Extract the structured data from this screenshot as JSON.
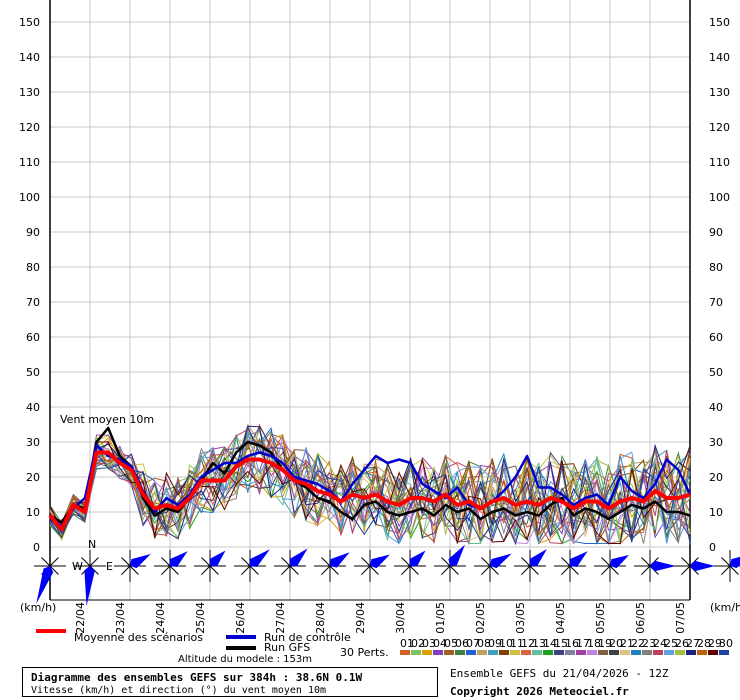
{
  "chart_data": {
    "type": "line",
    "title": "Vent moyen 10m",
    "ylim": [
      0,
      150
    ],
    "yticks": [
      0,
      10,
      20,
      30,
      40,
      50,
      60,
      70,
      80,
      90,
      100,
      110,
      120,
      130,
      140,
      150
    ],
    "x_labels": [
      "22/04",
      "23/04",
      "24/04",
      "25/04",
      "26/04",
      "27/04",
      "28/04",
      "29/04",
      "30/04",
      "01/05",
      "02/05",
      "03/05",
      "04/05",
      "05/05",
      "06/05",
      "07/05"
    ],
    "unit_left": "(km/h)",
    "unit_right": "(km/h)",
    "mean_series": {
      "name": "Moyenne des scénarios",
      "color": "#ff0000",
      "values": [
        9,
        5,
        12,
        10,
        27,
        27,
        24,
        22,
        15,
        11,
        12,
        11,
        14,
        19,
        19,
        19,
        23,
        25,
        25,
        24,
        22,
        19,
        18,
        16,
        15,
        13,
        15,
        14,
        15,
        13,
        12,
        14,
        14,
        13,
        15,
        12,
        13,
        11,
        13,
        14,
        12,
        13,
        12,
        14,
        13,
        11,
        13,
        13,
        11,
        13,
        14,
        13,
        16,
        14,
        14,
        15
      ]
    },
    "control_series": {
      "name": "Run de contrôle",
      "color": "#0000cc",
      "values": [
        8,
        6,
        11,
        14,
        29,
        26,
        25,
        23,
        16,
        10,
        14,
        12,
        15,
        20,
        22,
        24,
        24,
        26,
        27,
        26,
        24,
        20,
        19,
        18,
        16,
        13,
        18,
        22,
        26,
        24,
        25,
        24,
        18,
        16,
        14,
        17,
        12,
        11,
        13,
        16,
        20,
        26,
        17,
        17,
        15,
        12,
        14,
        15,
        12,
        20,
        16,
        14,
        18,
        25,
        22,
        15
      ]
    },
    "gfs_series": {
      "name": "Run GFS",
      "color": "#000000",
      "values": [
        9,
        7,
        12,
        11,
        30,
        34,
        26,
        23,
        14,
        9,
        11,
        10,
        14,
        19,
        24,
        21,
        27,
        30,
        29,
        27,
        22,
        19,
        17,
        14,
        13,
        10,
        8,
        12,
        13,
        10,
        9,
        10,
        11,
        9,
        12,
        10,
        11,
        8,
        10,
        11,
        9,
        10,
        9,
        12,
        14,
        9,
        11,
        10,
        8,
        10,
        12,
        11,
        13,
        10,
        10,
        9
      ]
    },
    "perturbations_label": "30 Perts.",
    "perturbations": [
      {
        "name": "01",
        "color": "#d06020"
      },
      {
        "name": "02",
        "color": "#80c060"
      },
      {
        "name": "03",
        "color": "#e0a000"
      },
      {
        "name": "04",
        "color": "#8040c0"
      },
      {
        "name": "05",
        "color": "#a06020"
      },
      {
        "name": "06",
        "color": "#408040"
      },
      {
        "name": "07",
        "color": "#2060d0"
      },
      {
        "name": "08",
        "color": "#c0a060"
      },
      {
        "name": "09",
        "color": "#40a0c0"
      },
      {
        "name": "10",
        "color": "#804000"
      },
      {
        "name": "11",
        "color": "#d0c040"
      },
      {
        "name": "12",
        "color": "#e06040"
      },
      {
        "name": "13",
        "color": "#60c0a0"
      },
      {
        "name": "14",
        "color": "#20a020"
      },
      {
        "name": "15",
        "color": "#404080"
      },
      {
        "name": "16",
        "color": "#8080a0"
      },
      {
        "name": "17",
        "color": "#a040a0"
      },
      {
        "name": "18",
        "color": "#c080e0"
      },
      {
        "name": "19",
        "color": "#806040"
      },
      {
        "name": "20",
        "color": "#404040"
      },
      {
        "name": "21",
        "color": "#e0c080"
      },
      {
        "name": "22",
        "color": "#2080c0"
      },
      {
        "name": "23",
        "color": "#808080"
      },
      {
        "name": "24",
        "color": "#c04060"
      },
      {
        "name": "25",
        "color": "#60a0e0"
      },
      {
        "name": "26",
        "color": "#a0c040"
      },
      {
        "name": "27",
        "color": "#202080"
      },
      {
        "name": "28",
        "color": "#c06000"
      },
      {
        "name": "29",
        "color": "#600000"
      },
      {
        "name": "30",
        "color": "#2040a0"
      }
    ]
  },
  "wind_roses": {
    "compass_labels": {
      "north": "N",
      "west": "W",
      "east": "E"
    },
    "color": "#0000ff",
    "directions": [
      200,
      185,
      60,
      50,
      45,
      50,
      45,
      55,
      60,
      45,
      35,
      60,
      45,
      50,
      60,
      90,
      90,
      60
    ]
  },
  "legend": {
    "mean": "Moyenne des scénarios",
    "control": "Run de contrôle",
    "gfs": "Run GFS",
    "perts": "30 Perts."
  },
  "footer": {
    "altitude": "Altitude du modele : 153m",
    "title": "Diagramme des ensembles GEFS sur 384h : 38.6N 0.1W",
    "subtitle": "Vitesse (km/h) et direction (°) du vent moyen 10m",
    "ensemble": "Ensemble GEFS du 21/04/2026 - 12Z",
    "copyright": "Copyright 2026 Meteociel.fr"
  }
}
